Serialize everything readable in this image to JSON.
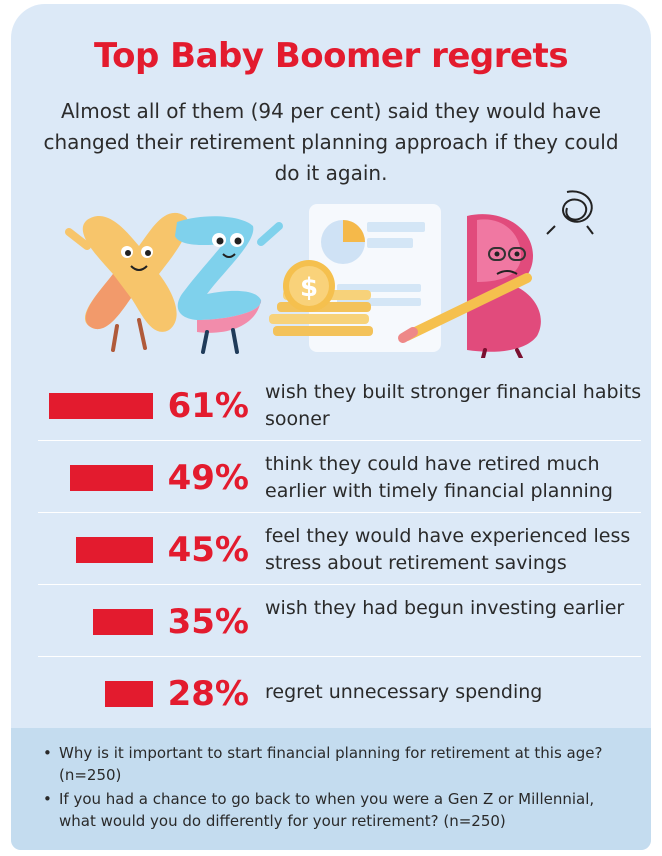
{
  "colors": {
    "accent": "#e31b2e",
    "background": "#dce9f7",
    "notes_background": "#c4dcef",
    "divider": "#ffffff"
  },
  "title": "Top Baby Boomer regrets",
  "subtitle": "Almost all of them (94 per cent) said they would have changed their retirement planning approach if they could do it again.",
  "chart_data": {
    "type": "bar",
    "orientation": "horizontal",
    "categories": [
      "wish they built stronger financial habits sooner",
      "think they could have retired much earlier with timely financial planning",
      "feel they would have experienced less stress about retirement savings",
      "wish they had begun investing earlier",
      "regret unnecessary spending"
    ],
    "values": [
      61,
      49,
      45,
      35,
      28
    ],
    "value_labels": [
      "61%",
      "49%",
      "45%",
      "35%",
      "28%"
    ],
    "xlim": [
      0,
      100
    ]
  },
  "rows": [
    {
      "pct": "61%",
      "label": "wish they built stronger financial habits sooner"
    },
    {
      "pct": "49%",
      "label": "think they could have retired much earlier with timely financial planning"
    },
    {
      "pct": "45%",
      "label": "feel they would have experienced less stress about retirement savings"
    },
    {
      "pct": "35%",
      "label": "wish they had begun investing earlier"
    },
    {
      "pct": "28%",
      "label": "regret unnecessary spending"
    }
  ],
  "illustration": {
    "currency_symbol": "$",
    "characters": [
      "letter-x-character",
      "letter-z-character",
      "letter-b-character"
    ]
  },
  "notes": [
    "Why is it important to start financial planning for retirement at this age? (n=250)",
    "If you had a chance to go back to when you were a Gen Z or Millennial, what would you do differently for your retirement? (n=250)"
  ],
  "bullet_glyph": "•"
}
